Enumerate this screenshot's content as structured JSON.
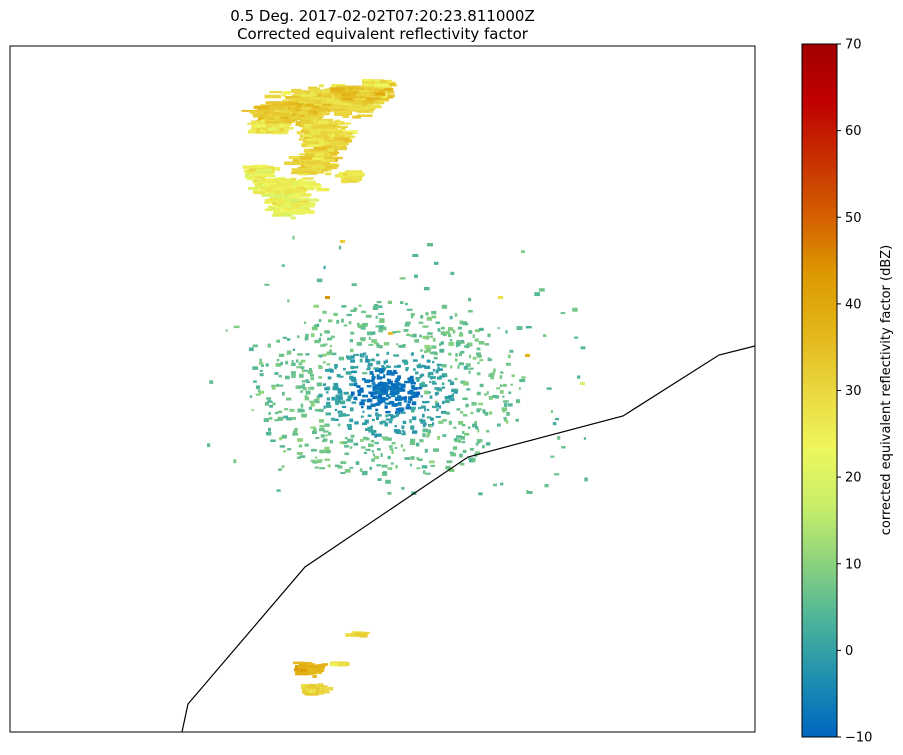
{
  "chart_data": {
    "type": "heatmap",
    "title_line1": "0.5 Deg. 2017-02-02T07:20:23.811000Z",
    "title_line2": "Corrected equivalent reflectivity factor",
    "colorbar": {
      "label": "corrected equivalent reflectivity factor (dBZ)",
      "vmin": -10,
      "vmax": 70,
      "ticks": [
        -10,
        0,
        10,
        20,
        30,
        40,
        50,
        60,
        70
      ],
      "colormap": [
        "#0066c0",
        "#1e8fb0",
        "#4bb39a",
        "#8bd27e",
        "#c8ee6a",
        "#eef65c",
        "#ead740",
        "#e3b61a",
        "#dc9a00",
        "#d46000",
        "#c83000",
        "#c00000",
        "#a00000"
      ]
    },
    "coastline": "single black coastline polyline crossing the lower-right of the map",
    "echo_regions": [
      {
        "region": "northern precipitation band",
        "dbz_range": [
          20,
          45
        ]
      },
      {
        "region": "central clutter around radar",
        "dbz_range": [
          -10,
          15
        ]
      },
      {
        "region": "southern small cells",
        "dbz_range": [
          25,
          45
        ]
      }
    ]
  }
}
